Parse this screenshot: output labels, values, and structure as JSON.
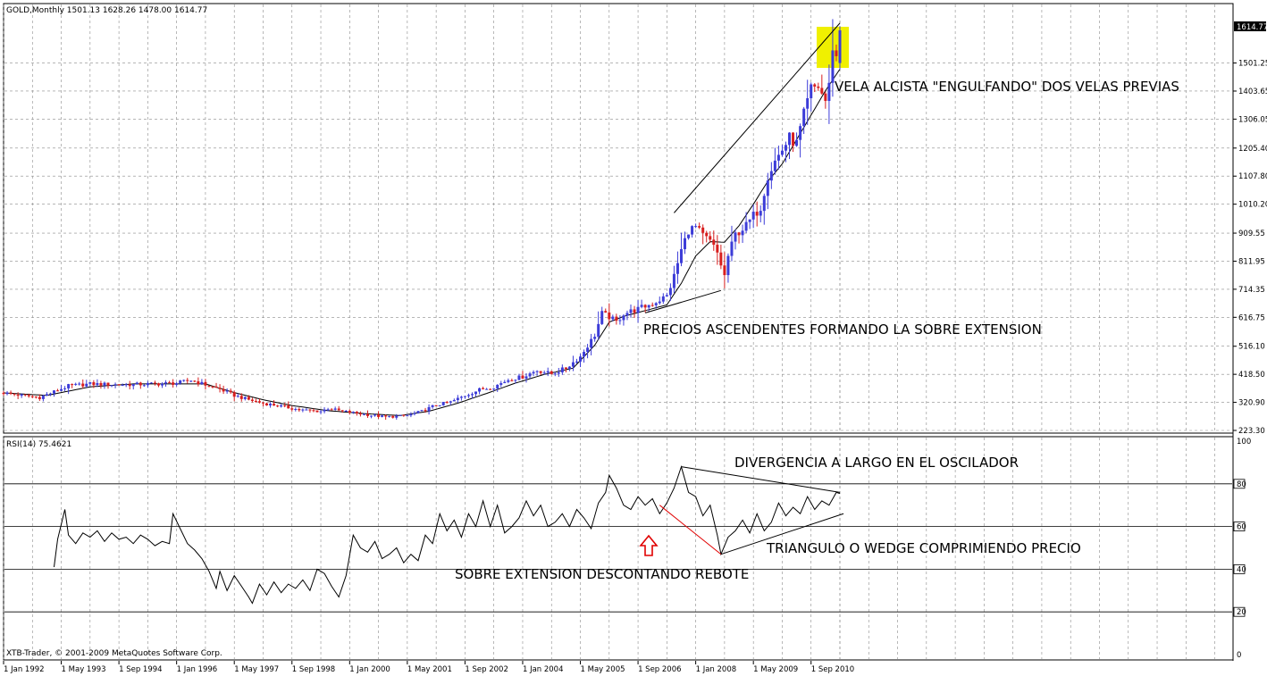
{
  "window": {
    "symbol_header": "GOLD,Monthly  1501.13 1628.26 1478.00 1614.77",
    "rsi_header": "RSI(14) 75.4621",
    "copyright": "XTB-Trader, © 2001-2009 MetaQuotes Software Corp."
  },
  "colors": {
    "bull_candle": "#3c3cd8",
    "bear_candle": "#d81e1e",
    "grid": "#8a8a8a",
    "highlight": "#f0f000",
    "arrow": "#e00000",
    "divergence_line": "#e00000"
  },
  "annotations": {
    "engulfing": "VELA ALCISTA \"ENGULFANDO\" DOS VELAS PREVIAS",
    "overextension": "PRECIOS ASCENDENTES FORMANDO LA SOBRE EXTENSION",
    "divergence": "DIVERGENCIA A LARGO EN EL OSCILADOR",
    "triangle": "TRIANGULO O WEDGE COMPRIMIENDO PRECIO",
    "rebound": "SOBRE EXTENSION DESCONTANDO REBOTE"
  },
  "chart_data": [
    {
      "type": "candlestick",
      "title": "GOLD,Monthly",
      "ohlc_last": {
        "open": 1501.13,
        "high": 1628.26,
        "low": 1478.0,
        "close": 1614.77
      },
      "current_price_label": "1614.77",
      "y_ticks": [
        "1501.25",
        "1403.65",
        "1306.05",
        "1205.40",
        "1107.80",
        "1010.20",
        "909.55",
        "811.95",
        "714.35",
        "616.75",
        "516.10",
        "418.50",
        "320.90",
        "223.30"
      ],
      "y_tick_values": [
        1501.25,
        1403.65,
        1306.05,
        1205.4,
        1107.8,
        1010.2,
        909.55,
        811.95,
        714.35,
        616.75,
        516.1,
        418.5,
        320.9,
        223.3
      ],
      "ylim": [
        223.3,
        1680
      ],
      "x_ticks": [
        "1 Jan 1992",
        "1 May 1993",
        "1 Sep 1994",
        "1 Jan 1996",
        "1 May 1997",
        "1 Sep 1998",
        "1 Jan 2000",
        "1 May 2001",
        "1 Sep 2002",
        "1 Jan 2004",
        "1 May 2005",
        "1 Sep 2006",
        "1 Jan 2008",
        "1 May 2009",
        "1 Sep 2010"
      ],
      "x_tick_months": [
        0,
        16,
        32,
        48,
        64,
        80,
        96,
        112,
        128,
        144,
        160,
        176,
        192,
        208,
        224
      ],
      "x_range_months": [
        0,
        232
      ],
      "grid": true,
      "close_anchors": [
        [
          0,
          354
        ],
        [
          5,
          345
        ],
        [
          10,
          338
        ],
        [
          14,
          358
        ],
        [
          18,
          378
        ],
        [
          24,
          385
        ],
        [
          30,
          383
        ],
        [
          36,
          383
        ],
        [
          42,
          385
        ],
        [
          48,
          388
        ],
        [
          52,
          398
        ],
        [
          56,
          382
        ],
        [
          60,
          367
        ],
        [
          64,
          345
        ],
        [
          68,
          330
        ],
        [
          72,
          318
        ],
        [
          78,
          305
        ],
        [
          82,
          295
        ],
        [
          88,
          290
        ],
        [
          90,
          300
        ],
        [
          94,
          290
        ],
        [
          98,
          283
        ],
        [
          102,
          276
        ],
        [
          106,
          270
        ],
        [
          112,
          275
        ],
        [
          116,
          290
        ],
        [
          120,
          312
        ],
        [
          124,
          322
        ],
        [
          128,
          345
        ],
        [
          132,
          365
        ],
        [
          136,
          375
        ],
        [
          140,
          400
        ],
        [
          144,
          410
        ],
        [
          148,
          432
        ],
        [
          152,
          420
        ],
        [
          156,
          440
        ],
        [
          160,
          480
        ],
        [
          164,
          555
        ],
        [
          166,
          630
        ],
        [
          168,
          618
        ],
        [
          170,
          600
        ],
        [
          172,
          630
        ],
        [
          176,
          645
        ],
        [
          180,
          665
        ],
        [
          184,
          690
        ],
        [
          186,
          760
        ],
        [
          188,
          850
        ],
        [
          190,
          920
        ],
        [
          192,
          930
        ],
        [
          194,
          900
        ],
        [
          196,
          880
        ],
        [
          198,
          840
        ],
        [
          200,
          760
        ],
        [
          201,
          830
        ],
        [
          203,
          905
        ],
        [
          206,
          935
        ],
        [
          208,
          970
        ],
        [
          210,
          1000
        ],
        [
          212,
          1110
        ],
        [
          214,
          1160
        ],
        [
          216,
          1200
        ],
        [
          218,
          1240
        ],
        [
          220,
          1220
        ],
        [
          222,
          1320
        ],
        [
          224,
          1410
        ],
        [
          226,
          1420
        ],
        [
          228,
          1370
        ],
        [
          229,
          1420
        ],
        [
          230,
          1560
        ],
        [
          231,
          1520
        ],
        [
          232,
          1614.77
        ]
      ],
      "moving_average_anchors": [
        [
          0,
          354
        ],
        [
          12,
          345
        ],
        [
          24,
          375
        ],
        [
          36,
          385
        ],
        [
          48,
          385
        ],
        [
          56,
          385
        ],
        [
          64,
          355
        ],
        [
          72,
          330
        ],
        [
          80,
          310
        ],
        [
          90,
          292
        ],
        [
          100,
          282
        ],
        [
          110,
          275
        ],
        [
          118,
          290
        ],
        [
          126,
          318
        ],
        [
          134,
          352
        ],
        [
          142,
          388
        ],
        [
          150,
          418
        ],
        [
          158,
          440
        ],
        [
          164,
          520
        ],
        [
          168,
          600
        ],
        [
          172,
          620
        ],
        [
          178,
          640
        ],
        [
          184,
          660
        ],
        [
          188,
          735
        ],
        [
          192,
          830
        ],
        [
          196,
          880
        ],
        [
          200,
          878
        ],
        [
          204,
          935
        ],
        [
          208,
          1010
        ],
        [
          212,
          1090
        ],
        [
          216,
          1150
        ],
        [
          220,
          1235
        ],
        [
          224,
          1320
        ],
        [
          228,
          1405
        ],
        [
          232,
          1480
        ]
      ],
      "trendlines": [
        {
          "kind": "upper",
          "points": [
            [
              186,
              980
            ],
            [
              232,
              1640
            ]
          ]
        },
        {
          "kind": "lower",
          "points": [
            [
              178,
              632
            ],
            [
              199,
              710
            ]
          ]
        }
      ]
    },
    {
      "type": "line",
      "title": "RSI(14)",
      "value_last": 75.4621,
      "ylim": [
        0,
        100
      ],
      "y_ticks": [
        "100",
        "80",
        "60",
        "40",
        "20",
        "0"
      ],
      "y_tick_values": [
        100,
        80,
        60,
        40,
        20,
        0
      ],
      "levels": [
        80,
        60,
        40,
        20
      ],
      "x_range_months": [
        0,
        232
      ],
      "rsi_anchors": [
        [
          14,
          41
        ],
        [
          15,
          54
        ],
        [
          17,
          68
        ],
        [
          18,
          56
        ],
        [
          20,
          52
        ],
        [
          22,
          57
        ],
        [
          24,
          55
        ],
        [
          26,
          58
        ],
        [
          28,
          53
        ],
        [
          30,
          57
        ],
        [
          32,
          54
        ],
        [
          34,
          55
        ],
        [
          36,
          52
        ],
        [
          38,
          56
        ],
        [
          40,
          54
        ],
        [
          42,
          51
        ],
        [
          44,
          53
        ],
        [
          46,
          52
        ],
        [
          47,
          66
        ],
        [
          49,
          59
        ],
        [
          51,
          52
        ],
        [
          53,
          49
        ],
        [
          55,
          45
        ],
        [
          57,
          39
        ],
        [
          59,
          31
        ],
        [
          60,
          39
        ],
        [
          62,
          30
        ],
        [
          64,
          37
        ],
        [
          66,
          32
        ],
        [
          68,
          27
        ],
        [
          69,
          24
        ],
        [
          71,
          33
        ],
        [
          73,
          28
        ],
        [
          75,
          34
        ],
        [
          77,
          29
        ],
        [
          79,
          33
        ],
        [
          81,
          31
        ],
        [
          83,
          35
        ],
        [
          85,
          30
        ],
        [
          87,
          40
        ],
        [
          89,
          38
        ],
        [
          91,
          32
        ],
        [
          93,
          27
        ],
        [
          95,
          37
        ],
        [
          97,
          56
        ],
        [
          99,
          50
        ],
        [
          101,
          48
        ],
        [
          103,
          53
        ],
        [
          105,
          45
        ],
        [
          107,
          47
        ],
        [
          109,
          50
        ],
        [
          111,
          43
        ],
        [
          113,
          47
        ],
        [
          115,
          44
        ],
        [
          117,
          56
        ],
        [
          119,
          52
        ],
        [
          121,
          66
        ],
        [
          123,
          58
        ],
        [
          125,
          63
        ],
        [
          127,
          55
        ],
        [
          129,
          66
        ],
        [
          131,
          60
        ],
        [
          133,
          72
        ],
        [
          135,
          60
        ],
        [
          137,
          70
        ],
        [
          139,
          57
        ],
        [
          141,
          60
        ],
        [
          143,
          64
        ],
        [
          145,
          72
        ],
        [
          147,
          65
        ],
        [
          149,
          70
        ],
        [
          151,
          60
        ],
        [
          153,
          62
        ],
        [
          155,
          66
        ],
        [
          157,
          60
        ],
        [
          159,
          68
        ],
        [
          161,
          64
        ],
        [
          163,
          59
        ],
        [
          165,
          71
        ],
        [
          167,
          76
        ],
        [
          168,
          84
        ],
        [
          170,
          78
        ],
        [
          172,
          70
        ],
        [
          174,
          68
        ],
        [
          176,
          74
        ],
        [
          178,
          70
        ],
        [
          180,
          73
        ],
        [
          182,
          66
        ],
        [
          184,
          71
        ],
        [
          186,
          78
        ],
        [
          188,
          88
        ],
        [
          190,
          76
        ],
        [
          192,
          74
        ],
        [
          194,
          65
        ],
        [
          196,
          70
        ],
        [
          198,
          56
        ],
        [
          199,
          47
        ],
        [
          201,
          55
        ],
        [
          203,
          58
        ],
        [
          205,
          63
        ],
        [
          207,
          57
        ],
        [
          209,
          66
        ],
        [
          211,
          58
        ],
        [
          213,
          62
        ],
        [
          215,
          71
        ],
        [
          217,
          65
        ],
        [
          219,
          69
        ],
        [
          221,
          66
        ],
        [
          223,
          74
        ],
        [
          225,
          68
        ],
        [
          227,
          72
        ],
        [
          229,
          70
        ],
        [
          231,
          76
        ],
        [
          232,
          75.46
        ]
      ],
      "trendlines": [
        {
          "kind": "upper",
          "points": [
            [
              188,
              88
            ],
            [
              232,
              76
            ]
          ]
        },
        {
          "kind": "lower",
          "points": [
            [
              199,
              47
            ],
            [
              233,
              66
            ]
          ]
        },
        {
          "kind": "divergence",
          "points": [
            [
              182,
              70
            ],
            [
              199,
              47
            ]
          ]
        }
      ]
    }
  ]
}
